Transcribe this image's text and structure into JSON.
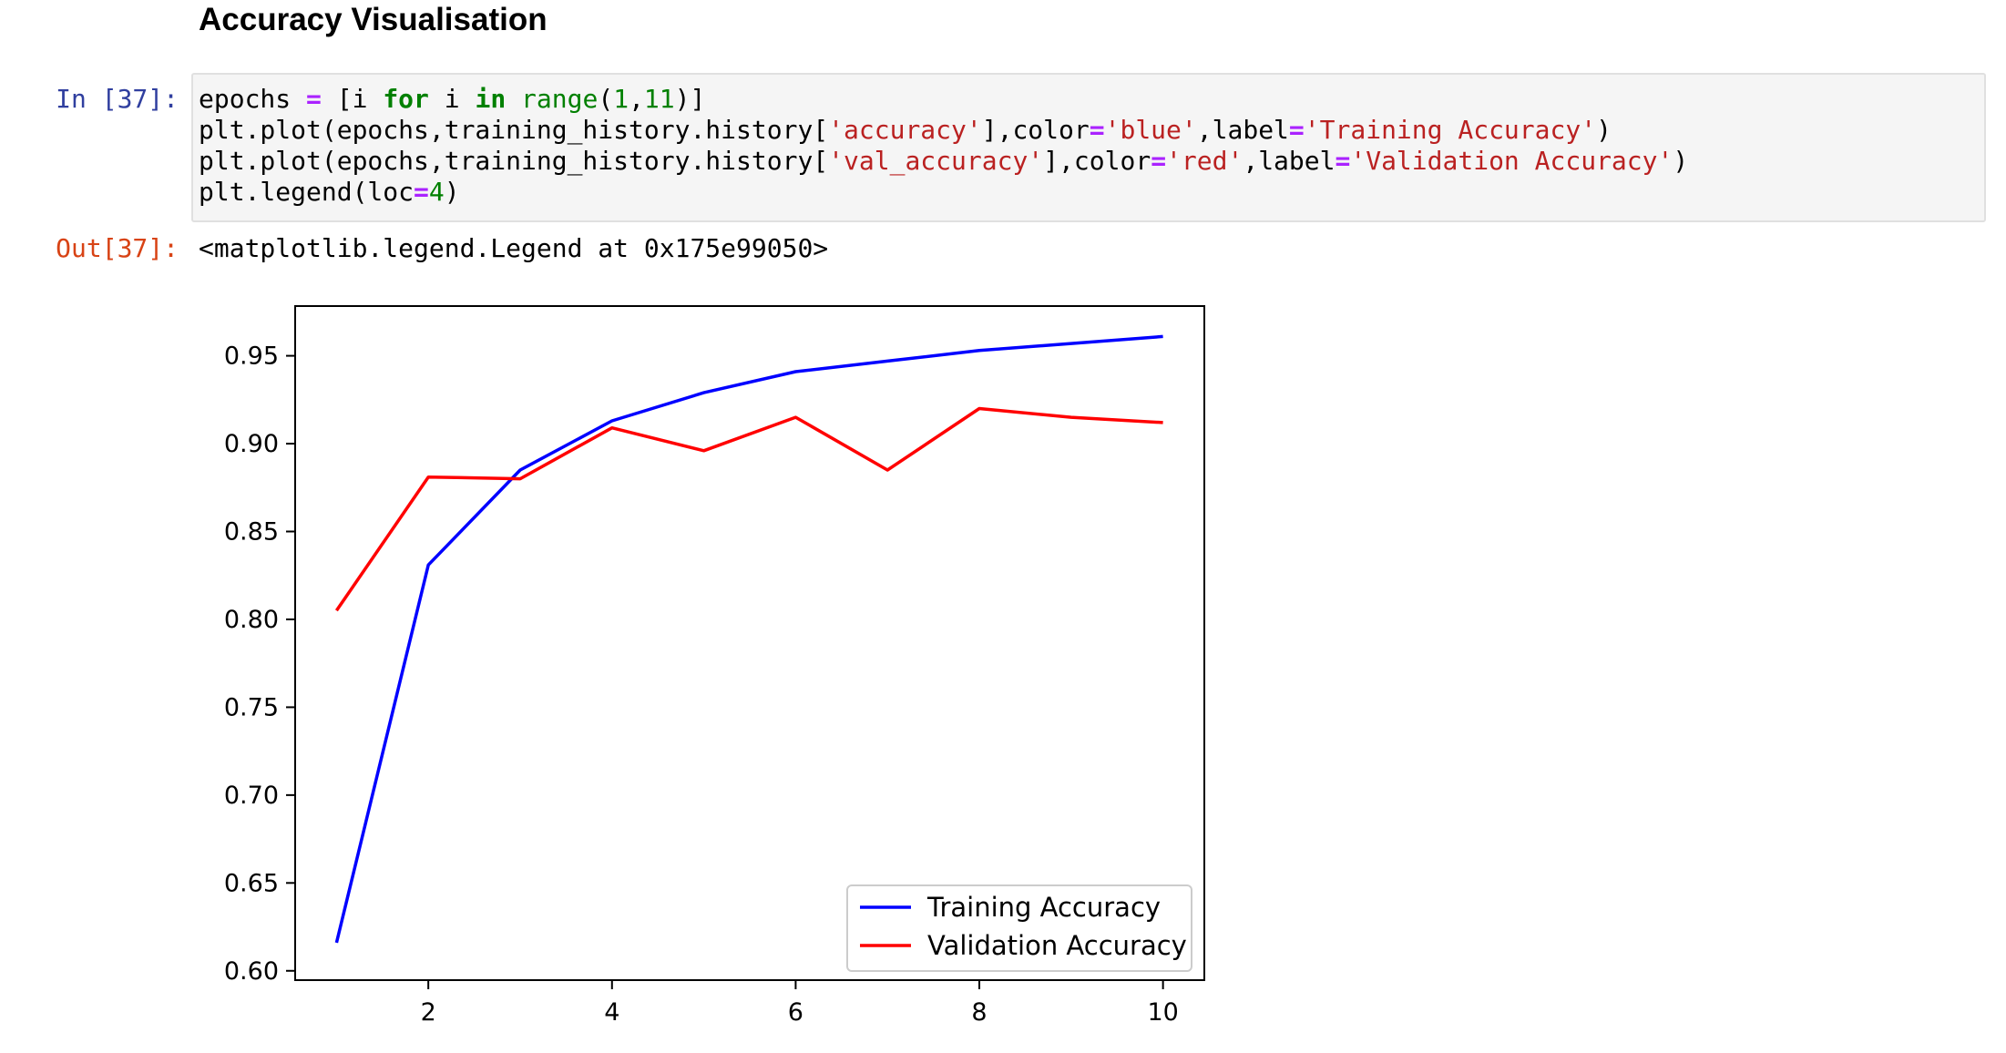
{
  "heading": "Accuracy Visualisation",
  "cell_in": {
    "prompt": "In [37]:",
    "line1": {
      "a": "epochs ",
      "b": "=",
      "c": " [i ",
      "d": "for",
      "e": " i ",
      "f": "in",
      "g": " ",
      "h": "range",
      "i": "(",
      "j": "1",
      "k": ",",
      "l": "11",
      "m": ")]"
    },
    "line2": {
      "a": "plt.plot(epochs,training_history.history[",
      "b": "'accuracy'",
      "c": "],color",
      "d": "=",
      "e": "'blue'",
      "f": ",label",
      "g": "=",
      "h": "'Training Accuracy'",
      "i": ")"
    },
    "line3": {
      "a": "plt.plot(epochs,training_history.history[",
      "b": "'val_accuracy'",
      "c": "],color",
      "d": "=",
      "e": "'red'",
      "f": ",label",
      "g": "=",
      "h": "'Validation Accuracy'",
      "i": ")"
    },
    "line4": {
      "a": "plt.legend(loc",
      "b": "=",
      "c": "4",
      "d": ")"
    }
  },
  "cell_out": {
    "prompt": "Out[37]:",
    "text": "<matplotlib.legend.Legend at 0x175e99050>"
  },
  "chart_data": {
    "type": "line",
    "x": [
      1,
      2,
      3,
      4,
      5,
      6,
      7,
      8,
      9,
      10
    ],
    "series": [
      {
        "name": "Training Accuracy",
        "color": "#0000ff",
        "values": [
          0.616,
          0.831,
          0.885,
          0.913,
          0.929,
          0.941,
          0.947,
          0.953,
          0.957,
          0.961
        ]
      },
      {
        "name": "Validation Accuracy",
        "color": "#ff0000",
        "values": [
          0.805,
          0.881,
          0.88,
          0.909,
          0.896,
          0.915,
          0.885,
          0.92,
          0.915,
          0.912
        ]
      }
    ],
    "xlim": [
      0.55,
      10.45
    ],
    "ylim": [
      0.5947,
      0.9783
    ],
    "xticks": [
      2,
      4,
      6,
      8,
      10
    ],
    "yticks": [
      0.6,
      0.65,
      0.7,
      0.75,
      0.8,
      0.85,
      0.9,
      0.95
    ],
    "xtick_labels": [
      "2",
      "4",
      "6",
      "8",
      "10"
    ],
    "ytick_labels": [
      "0.60",
      "0.65",
      "0.70",
      "0.75",
      "0.80",
      "0.85",
      "0.90",
      "0.95"
    ],
    "legend_position": "lower right",
    "grid": false
  }
}
